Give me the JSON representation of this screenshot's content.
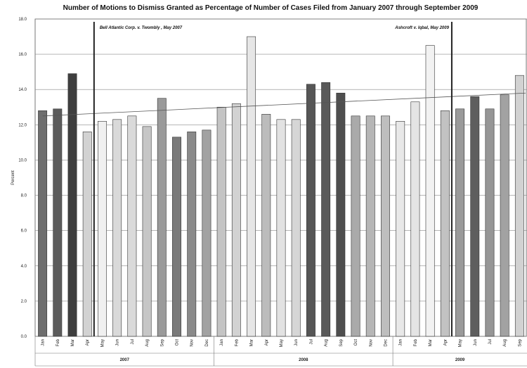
{
  "chart_data": {
    "type": "bar",
    "title": "Number of Motions to Dismiss Granted as Percentage of Number of Cases Filed  from January 2007 through September 2009",
    "ylabel": "Percent",
    "ylim": [
      0,
      18
    ],
    "yticks": [
      "0.0",
      "2.0",
      "4.0",
      "6.0",
      "8.0",
      "10.0",
      "12.0",
      "14.0",
      "16.0",
      "18.0"
    ],
    "grid": true,
    "categories": [
      "Jan",
      "Feb",
      "Mar",
      "Apr",
      "May",
      "Jun",
      "Jul",
      "Aug",
      "Sep",
      "Oct",
      "Nov",
      "Dec",
      "Jan",
      "Feb",
      "Mar",
      "Apr",
      "May",
      "Jun",
      "Jul",
      "Aug",
      "Sep",
      "Oct",
      "Nov",
      "Dec",
      "Jan",
      "Feb",
      "Mar",
      "Apr",
      "May",
      "Jun",
      "Jul",
      "Aug",
      "Sep"
    ],
    "years": [
      {
        "label": "2007",
        "start": 0,
        "end": 11
      },
      {
        "label": "2008",
        "start": 12,
        "end": 23
      },
      {
        "label": "2009",
        "start": 24,
        "end": 32
      }
    ],
    "values": [
      12.8,
      12.9,
      14.9,
      11.6,
      12.2,
      12.3,
      12.5,
      11.9,
      13.5,
      11.3,
      11.6,
      11.7,
      13.0,
      13.2,
      17.0,
      12.6,
      12.3,
      12.3,
      14.3,
      14.4,
      13.8,
      12.5,
      12.5,
      12.5,
      12.2,
      13.3,
      16.5,
      12.8,
      12.9,
      13.6,
      12.9,
      13.7,
      14.8
    ],
    "shades": [
      "#6e6e6e",
      "#5c5c5c",
      "#3e3e3e",
      "#d2d2d2",
      "#f0f0f0",
      "#d9d9d9",
      "#dadada",
      "#c6c6c6",
      "#9a9a9a",
      "#7a7a7a",
      "#8a8a8a",
      "#a2a2a2",
      "#c4c4c4",
      "#d2d2d2",
      "#e6e6e6",
      "#bcbcbc",
      "#e2e2e2",
      "#d6d6d6",
      "#565656",
      "#5a5a5a",
      "#4e4e4e",
      "#aaaaaa",
      "#b6b6b6",
      "#bebebe",
      "#e8e8e8",
      "#e4e4e4",
      "#f2f2f2",
      "#c2c2c2",
      "#9a9a9a",
      "#5e5e5e",
      "#969696",
      "#a2a2a2",
      "#d2d2d2"
    ],
    "trendline": {
      "start": 12.5,
      "end": 13.8
    },
    "annotations": [
      {
        "text": "Bell Atlantic Corp. v. Twombly , May 2007",
        "index": 4
      },
      {
        "text": "Ashcroft v. Iqbal, May 2009",
        "index": 28
      }
    ]
  }
}
